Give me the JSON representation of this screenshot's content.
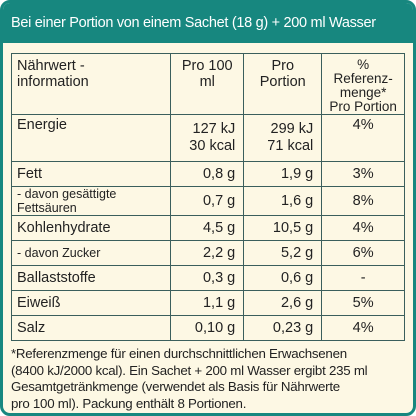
{
  "header": {
    "title": "Bei einer Portion von einem Sachet (18 g) + 200 ml Wasser"
  },
  "table": {
    "columns": [
      [
        "Nährwert -",
        "information"
      ],
      [
        "Pro 100 ml"
      ],
      [
        "Pro Portion"
      ],
      [
        "% Referenz-",
        "menge*",
        "Pro Portion"
      ]
    ],
    "rows": [
      [
        "Energie",
        [
          "127 kJ",
          "30 kcal"
        ],
        [
          "299 kJ",
          "71 kcal"
        ],
        "4%"
      ],
      [
        "Fett",
        "0,8 g",
        "1,9 g",
        "3%"
      ],
      [
        "- davon gesättigte Fettsäuren",
        "0,7 g",
        "1,6 g",
        "8%"
      ],
      [
        "Kohlenhydrate",
        "4,5 g",
        "10,5 g",
        "4%"
      ],
      [
        "- davon Zucker",
        "2,2 g",
        "5,2 g",
        "6%"
      ],
      [
        "Ballaststoffe",
        "0,3 g",
        "0,6 g",
        "-"
      ],
      [
        "Eiweiß",
        "1,1 g",
        "2,6 g",
        "5%"
      ],
      [
        "Salz",
        "0,10 g",
        "0,23 g",
        "4%"
      ]
    ]
  },
  "footnote": [
    "*Referenzmenge für einen durchschnittlichen Erwachsenen",
    "(8400 kJ/2000 kcal). Ein Sachet + 200 ml Wasser ergibt 235 ml",
    "Gesamtgetränkmenge (verwendet als Basis für Nährwerte",
    "pro 100 ml). Packung enthält 8 Portionen."
  ]
}
